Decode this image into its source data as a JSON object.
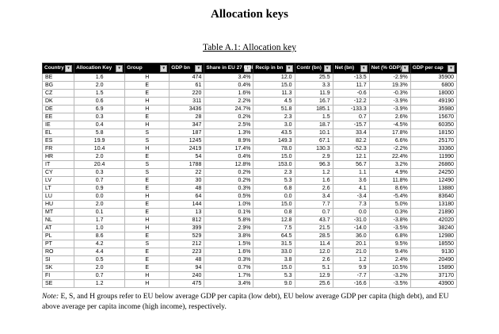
{
  "page": {
    "title": "Allocation keys",
    "caption": "Table A.1: Allocation key",
    "note_label": "Note:",
    "note_body": " E, S, and H groups refer to EU below average GDP per capita (low debt), EU below average GDP per capita (high debt), and EU above average per capita income (high income), respectively."
  },
  "table": {
    "columns": [
      "Country",
      "Allocation Key",
      "Group",
      "GDP bn",
      "Share in EU 27 GDP",
      "Recip in bn",
      "Contr (bn)",
      "Net (bn)",
      "Net (% GDP)",
      "GDP per cap"
    ],
    "rows": [
      [
        "BE",
        "1.6",
        "H",
        "474",
        "3.4%",
        "12.0",
        "25.5",
        "-13.5",
        "-2.9%",
        "35900"
      ],
      [
        "BG",
        "2.0",
        "E",
        "61",
        "0.4%",
        "15.0",
        "3.3",
        "11.7",
        "19.3%",
        "6800"
      ],
      [
        "CZ",
        "1.5",
        "E",
        "220",
        "1.6%",
        "11.3",
        "11.9",
        "-0.6",
        "-0.3%",
        "18000"
      ],
      [
        "DK",
        "0.6",
        "H",
        "311",
        "2.2%",
        "4.5",
        "16.7",
        "-12.2",
        "-3.9%",
        "49190"
      ],
      [
        "DE",
        "6.9",
        "H",
        "3436",
        "24.7%",
        "51.8",
        "185.1",
        "-133.3",
        "-3.9%",
        "35980"
      ],
      [
        "EE",
        "0.3",
        "E",
        "28",
        "0.2%",
        "2.3",
        "1.5",
        "0.7",
        "2.6%",
        "15670"
      ],
      [
        "IE",
        "0.4",
        "H",
        "347",
        "2.5%",
        "3.0",
        "18.7",
        "-15.7",
        "-4.5%",
        "60350"
      ],
      [
        "EL",
        "5.8",
        "S",
        "187",
        "1.3%",
        "43.5",
        "10.1",
        "33.4",
        "17.8%",
        "18150"
      ],
      [
        "ES",
        "19.9",
        "S",
        "1245",
        "8.9%",
        "149.3",
        "67.1",
        "82.2",
        "6.6%",
        "25170"
      ],
      [
        "FR",
        "10.4",
        "H",
        "2419",
        "17.4%",
        "78.0",
        "130.3",
        "-52.3",
        "-2.2%",
        "33360"
      ],
      [
        "HR",
        "2.0",
        "E",
        "54",
        "0.4%",
        "15.0",
        "2.9",
        "12.1",
        "22.4%",
        "11990"
      ],
      [
        "IT",
        "20.4",
        "S",
        "1788",
        "12.8%",
        "153.0",
        "96.3",
        "56.7",
        "3.2%",
        "26860"
      ],
      [
        "CY",
        "0.3",
        "S",
        "22",
        "0.2%",
        "2.3",
        "1.2",
        "1.1",
        "4.9%",
        "24250"
      ],
      [
        "LV",
        "0.7",
        "E",
        "30",
        "0.2%",
        "5.3",
        "1.6",
        "3.6",
        "11.8%",
        "12490"
      ],
      [
        "LT",
        "0.9",
        "E",
        "48",
        "0.3%",
        "6.8",
        "2.6",
        "4.1",
        "8.6%",
        "13880"
      ],
      [
        "LU",
        "0.0",
        "H",
        "64",
        "0.5%",
        "0.0",
        "3.4",
        "-3.4",
        "-5.4%",
        "83640"
      ],
      [
        "HU",
        "2.0",
        "E",
        "144",
        "1.0%",
        "15.0",
        "7.7",
        "7.3",
        "5.0%",
        "13180"
      ],
      [
        "MT",
        "0.1",
        "E",
        "13",
        "0.1%",
        "0.8",
        "0.7",
        "0.0",
        "0.3%",
        "21890"
      ],
      [
        "NL",
        "1.7",
        "H",
        "812",
        "5.8%",
        "12.8",
        "43.7",
        "-31.0",
        "-3.8%",
        "42020"
      ],
      [
        "AT",
        "1.0",
        "H",
        "399",
        "2.9%",
        "7.5",
        "21.5",
        "-14.0",
        "-3.5%",
        "38240"
      ],
      [
        "PL",
        "8.6",
        "E",
        "529",
        "3.8%",
        "64.5",
        "28.5",
        "36.0",
        "6.8%",
        "12980"
      ],
      [
        "PT",
        "4.2",
        "S",
        "212",
        "1.5%",
        "31.5",
        "11.4",
        "20.1",
        "9.5%",
        "18550"
      ],
      [
        "RO",
        "4.4",
        "E",
        "223",
        "1.6%",
        "33.0",
        "12.0",
        "21.0",
        "9.4%",
        "9130"
      ],
      [
        "SI",
        "0.5",
        "E",
        "48",
        "0.3%",
        "3.8",
        "2.6",
        "1.2",
        "2.4%",
        "20490"
      ],
      [
        "SK",
        "2.0",
        "E",
        "94",
        "0.7%",
        "15.0",
        "5.1",
        "9.9",
        "10.5%",
        "15890"
      ],
      [
        "FI",
        "0.7",
        "H",
        "240",
        "1.7%",
        "5.3",
        "12.9",
        "-7.7",
        "-3.2%",
        "37170"
      ],
      [
        "SE",
        "1.2",
        "H",
        "475",
        "3.4%",
        "9.0",
        "25.6",
        "-16.6",
        "-3.5%",
        "43900"
      ]
    ]
  }
}
